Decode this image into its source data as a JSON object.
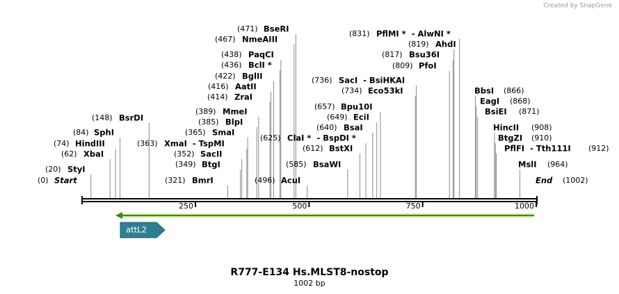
{
  "credit": "Created by SnapGene",
  "title": "R777-E134 Hs.MLST8-nostop",
  "subtitle": "1002 bp",
  "feature": "attL2",
  "axis": {
    "ticks": [
      250,
      500,
      750,
      1000
    ]
  },
  "sites": [
    {
      "position": 0,
      "label": "(0)",
      "name": "Start"
    },
    {
      "position": 20,
      "label": "(20)",
      "name": "StyI"
    },
    {
      "position": 62,
      "label": "(62)",
      "name": "XbaI"
    },
    {
      "position": 74,
      "label": "(74)",
      "name": "HindIII"
    },
    {
      "position": 84,
      "label": "(84)",
      "name": "SphI"
    },
    {
      "position": 148,
      "label": "(148)",
      "name": "BsrDI"
    },
    {
      "position": 321,
      "label": "(321)",
      "name": "BmrI"
    },
    {
      "position": 349,
      "label": "(349)",
      "name": "BtgI"
    },
    {
      "position": 352,
      "label": "(352)",
      "name": "SacII"
    },
    {
      "position": 363,
      "label": "(363)",
      "name": "XmaI  - TspMI"
    },
    {
      "position": 365,
      "label": "(365)",
      "name": "SmaI"
    },
    {
      "position": 385,
      "label": "(385)",
      "name": "BlpI"
    },
    {
      "position": 389,
      "label": "(389)",
      "name": "MmeI"
    },
    {
      "position": 414,
      "label": "(414)",
      "name": "ZraI"
    },
    {
      "position": 416,
      "label": "(416)",
      "name": "AatII"
    },
    {
      "position": 422,
      "label": "(422)",
      "name": "BglII"
    },
    {
      "position": 436,
      "label": "(436)",
      "name": "BclI *"
    },
    {
      "position": 438,
      "label": "(438)",
      "name": "PaqCI"
    },
    {
      "position": 467,
      "label": "(467)",
      "name": "NmeAIII"
    },
    {
      "position": 471,
      "label": "(471)",
      "name": "BseRI"
    },
    {
      "position": 496,
      "label": "(496)",
      "name": "AcuI"
    },
    {
      "position": 585,
      "label": "(585)",
      "name": "BsaWI"
    },
    {
      "position": 612,
      "label": "(612)",
      "name": "BstXI"
    },
    {
      "position": 625,
      "label": "(625)",
      "name": "ClaI *  - BspDI *"
    },
    {
      "position": 640,
      "label": "(640)",
      "name": "BsaI"
    },
    {
      "position": 649,
      "label": "(649)",
      "name": "EciI"
    },
    {
      "position": 657,
      "label": "(657)",
      "name": "Bpu10I"
    },
    {
      "position": 734,
      "label": "(734)",
      "name": "Eco53kI"
    },
    {
      "position": 736,
      "label": "(736)",
      "name": "SacI  - BsiHKAI"
    },
    {
      "position": 809,
      "label": "(809)",
      "name": "PfoI"
    },
    {
      "position": 817,
      "label": "(817)",
      "name": "Bsu36I"
    },
    {
      "position": 819,
      "label": "(819)",
      "name": "AhdI"
    },
    {
      "position": 831,
      "label": "(831)",
      "name": "PflMI *  - AlwNI *"
    },
    {
      "position": 866,
      "label": "(866)",
      "name": "BbsI"
    },
    {
      "position": 868,
      "label": "(868)",
      "name": "EagI"
    },
    {
      "position": 871,
      "label": "(871)",
      "name": "BsiEI"
    },
    {
      "position": 908,
      "label": "(908)",
      "name": "HincII"
    },
    {
      "position": 910,
      "label": "(910)",
      "name": "BtgZI"
    },
    {
      "position": 912,
      "label": "(912)",
      "name": "PflFI  - Tth111I"
    },
    {
      "position": 964,
      "label": "(964)",
      "name": "MslI"
    },
    {
      "position": 1002,
      "label": "(1002)",
      "name": "End"
    }
  ]
}
